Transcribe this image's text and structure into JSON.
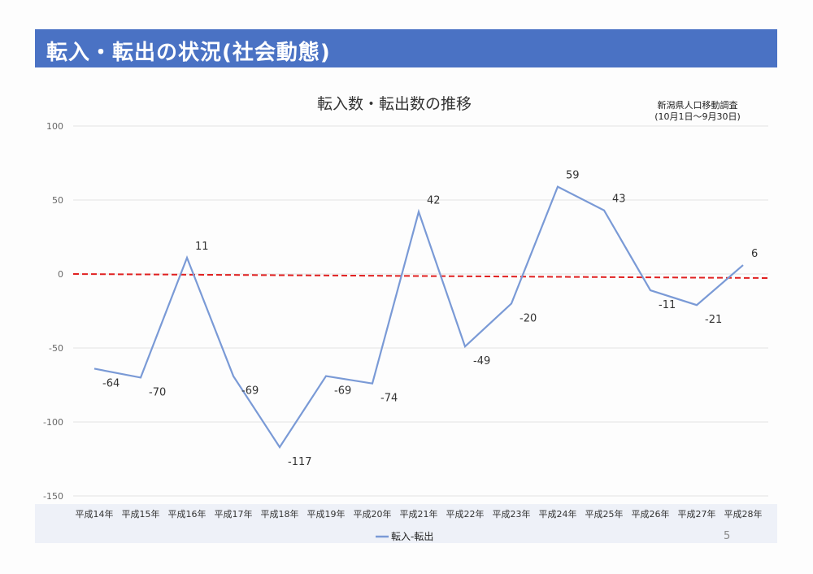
{
  "header": {
    "title": "転入・転出の状況(社会動態)"
  },
  "page_number": "5",
  "chart_data": {
    "type": "line",
    "title": "転入数・転出数の推移",
    "source": "新潟県人口移動調査",
    "source_period": "(10月1日～9月30日)",
    "categories": [
      "平成14年",
      "平成15年",
      "平成16年",
      "平成17年",
      "平成18年",
      "平成19年",
      "平成20年",
      "平成21年",
      "平成22年",
      "平成23年",
      "平成24年",
      "平成25年",
      "平成26年",
      "平成27年",
      "平成28年"
    ],
    "series": [
      {
        "name": "転入-転出",
        "values": [
          -64,
          -70,
          11,
          -69,
          -117,
          -69,
          -74,
          42,
          -49,
          -20,
          59,
          43,
          -11,
          -21,
          6
        ],
        "color": "#7a9ad6"
      }
    ],
    "reference_line": {
      "value": 0,
      "color": "#e02020",
      "style": "dashed"
    },
    "ylim": [
      -150,
      100
    ],
    "yticks": [
      100,
      50,
      0,
      -50,
      -100,
      -150
    ],
    "legend": "bottom",
    "grid": true
  }
}
